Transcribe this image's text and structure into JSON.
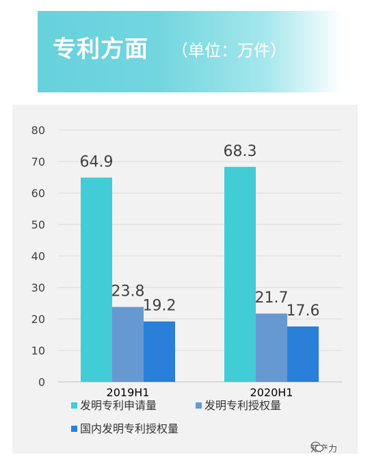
{
  "banner": {
    "title": "专利方面",
    "subtitle": "（单位：万件）"
  },
  "chart_data": {
    "type": "bar",
    "categories": [
      "2019H1",
      "2020H1"
    ],
    "series": [
      {
        "name": "发明专利申请量",
        "values": [
          64.9,
          68.3
        ],
        "color": "#41ccd6"
      },
      {
        "name": "发明专利授权量",
        "values": [
          23.8,
          21.7
        ],
        "color": "#6699d1"
      },
      {
        "name": "国内发明专利授权量",
        "values": [
          19.2,
          17.6
        ],
        "color": "#2a7fd8"
      }
    ],
    "ylim": [
      0,
      80
    ],
    "yticks": [
      0,
      10,
      20,
      30,
      40,
      50,
      60,
      70,
      80
    ],
    "grid": true,
    "legend_position": "bottom-left"
  },
  "watermark": {
    "text": "知产力",
    "icon": "wechat-icon"
  }
}
